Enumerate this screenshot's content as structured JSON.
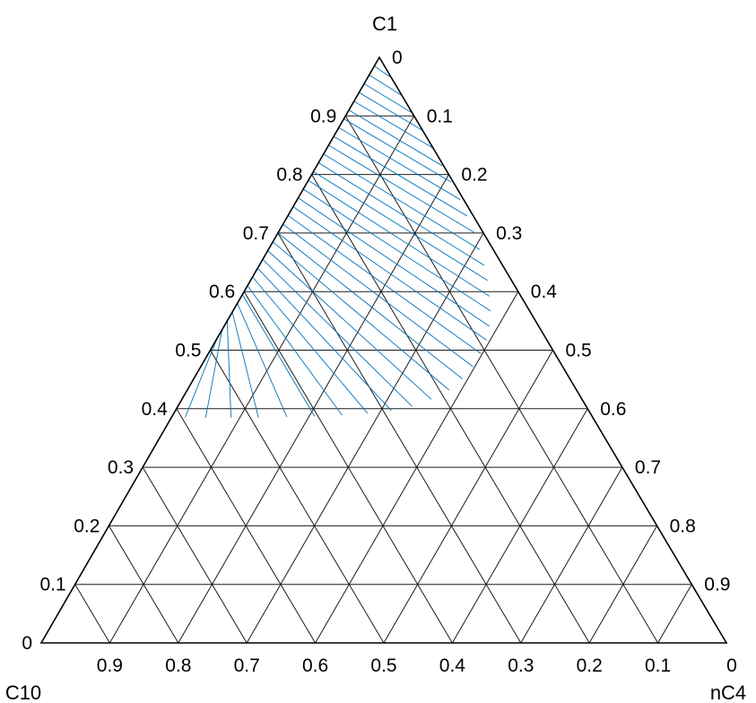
{
  "chart_data": {
    "type": "ternary",
    "title": "",
    "components": [
      "C1",
      "C10",
      "nC4"
    ],
    "tick_values": [
      0,
      0.1,
      0.2,
      0.3,
      0.4,
      0.5,
      0.6,
      0.7,
      0.8,
      0.9
    ],
    "tick_labels": [
      "0",
      "0.1",
      "0.2",
      "0.3",
      "0.4",
      "0.5",
      "0.6",
      "0.7",
      "0.8",
      "0.9"
    ],
    "grid": true,
    "series": [
      {
        "type": "tie-lines",
        "color": "#0072bd",
        "lines": [
          [
            [
              1.0,
              0.0
            ],
            [
              1.0,
              0.0
            ]
          ],
          [
            [
              0.985,
              0.0
            ],
            [
              0.965,
              0.035
            ]
          ],
          [
            [
              0.97,
              0.0
            ],
            [
              0.935,
              0.065
            ]
          ],
          [
            [
              0.955,
              0.0
            ],
            [
              0.905,
              0.095
            ]
          ],
          [
            [
              0.94,
              0.0
            ],
            [
              0.875,
              0.125
            ]
          ],
          [
            [
              0.925,
              0.0
            ],
            [
              0.845,
              0.155
            ]
          ],
          [
            [
              0.91,
              0.0
            ],
            [
              0.815,
              0.183
            ]
          ],
          [
            [
              0.895,
              0.0
            ],
            [
              0.787,
              0.21
            ]
          ],
          [
            [
              0.88,
              0.0
            ],
            [
              0.757,
              0.238
            ]
          ],
          [
            [
              0.865,
              0.0
            ],
            [
              0.729,
              0.262
            ]
          ],
          [
            [
              0.85,
              0.0
            ],
            [
              0.701,
              0.286
            ]
          ],
          [
            [
              0.835,
              0.0
            ],
            [
              0.672,
              0.308
            ]
          ],
          [
            [
              0.82,
              0.0
            ],
            [
              0.645,
              0.328
            ]
          ],
          [
            [
              0.805,
              0.0
            ],
            [
              0.619,
              0.346
            ]
          ],
          [
            [
              0.79,
              0.0
            ],
            [
              0.592,
              0.362
            ]
          ],
          [
            [
              0.775,
              0.0
            ],
            [
              0.567,
              0.376
            ]
          ],
          [
            [
              0.76,
              0.0
            ],
            [
              0.541,
              0.387
            ]
          ],
          [
            [
              0.745,
              0.0
            ],
            [
              0.517,
              0.395
            ]
          ],
          [
            [
              0.73,
              0.0
            ],
            [
              0.494,
              0.398
            ]
          ],
          [
            [
              0.715,
              0.0
            ],
            [
              0.472,
              0.397
            ]
          ],
          [
            [
              0.7,
              0.0
            ],
            [
              0.451,
              0.392
            ]
          ],
          [
            [
              0.685,
              0.0
            ],
            [
              0.432,
              0.382
            ]
          ],
          [
            [
              0.67,
              0.0
            ],
            [
              0.416,
              0.364
            ]
          ],
          [
            [
              0.655,
              0.0
            ],
            [
              0.404,
              0.342
            ]
          ],
          [
            [
              0.64,
              0.0
            ],
            [
              0.397,
              0.315
            ]
          ],
          [
            [
              0.625,
              0.0
            ],
            [
              0.392,
              0.283
            ]
          ],
          [
            [
              0.61,
              0.0
            ],
            [
              0.389,
              0.247
            ]
          ],
          [
            [
              0.595,
              0.0
            ],
            [
              0.387,
              0.208
            ]
          ],
          [
            [
              0.58,
              0.0
            ],
            [
              0.386,
              0.168
            ]
          ],
          [
            [
              0.565,
              0.0
            ],
            [
              0.385,
              0.127
            ]
          ],
          [
            [
              0.55,
              0.0
            ],
            [
              0.385,
              0.087
            ]
          ],
          [
            [
              0.535,
              0.0
            ],
            [
              0.385,
              0.05
            ]
          ],
          [
            [
              0.52,
              0.0
            ],
            [
              0.385,
              0.02
            ]
          ]
        ]
      }
    ]
  }
}
